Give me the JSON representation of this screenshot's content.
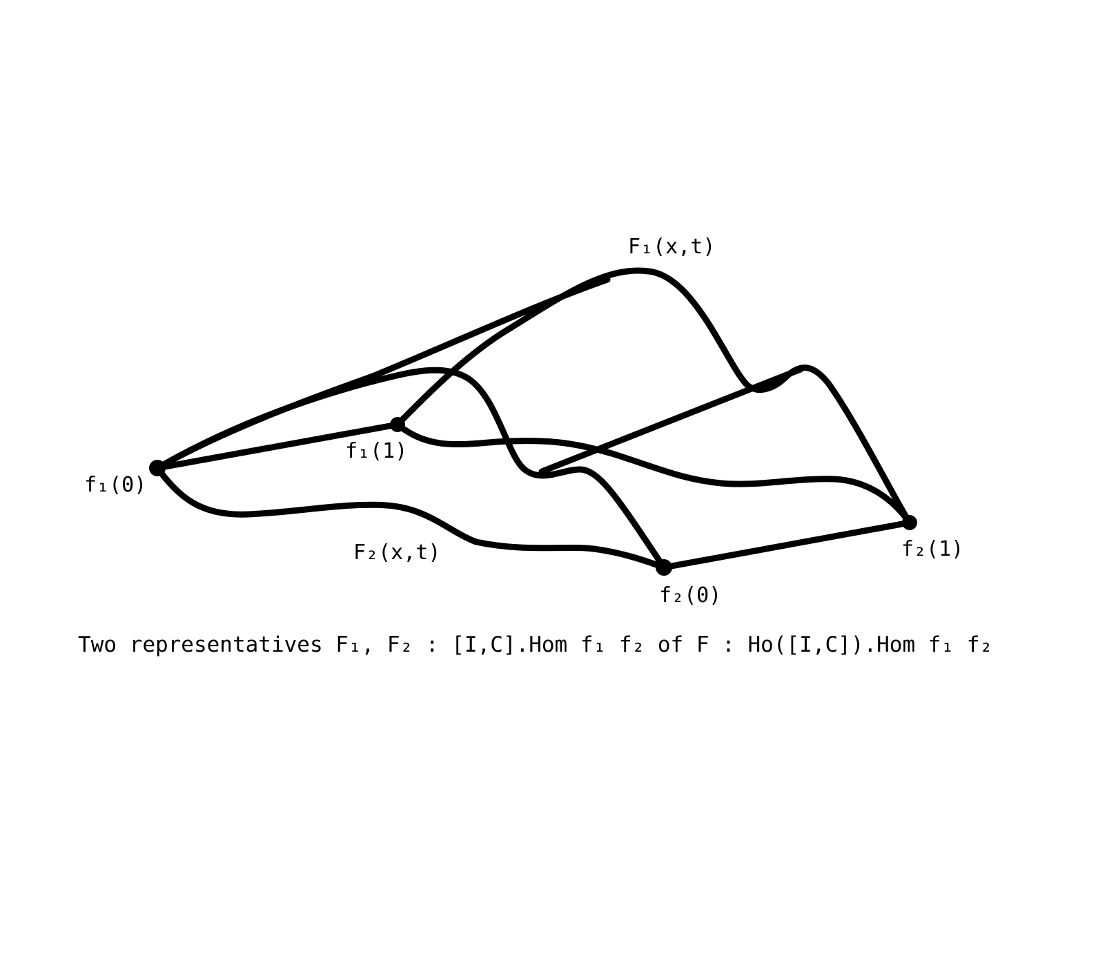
{
  "labels": {
    "f1_0": "f₁(0)",
    "f1_1": "f₁(1)",
    "f2_0": "f₂(0)",
    "f2_1": "f₂(1)",
    "F1": "F₁(x,t)",
    "F2": "F₂(x,t)"
  },
  "caption": "Two representatives F₁, F₂ : [I,C].Hom f₁ f₂ of F : Ho([I,C]).Hom f₁ f₂",
  "colors": {
    "ink": "#000000",
    "background": "#ffffff"
  }
}
